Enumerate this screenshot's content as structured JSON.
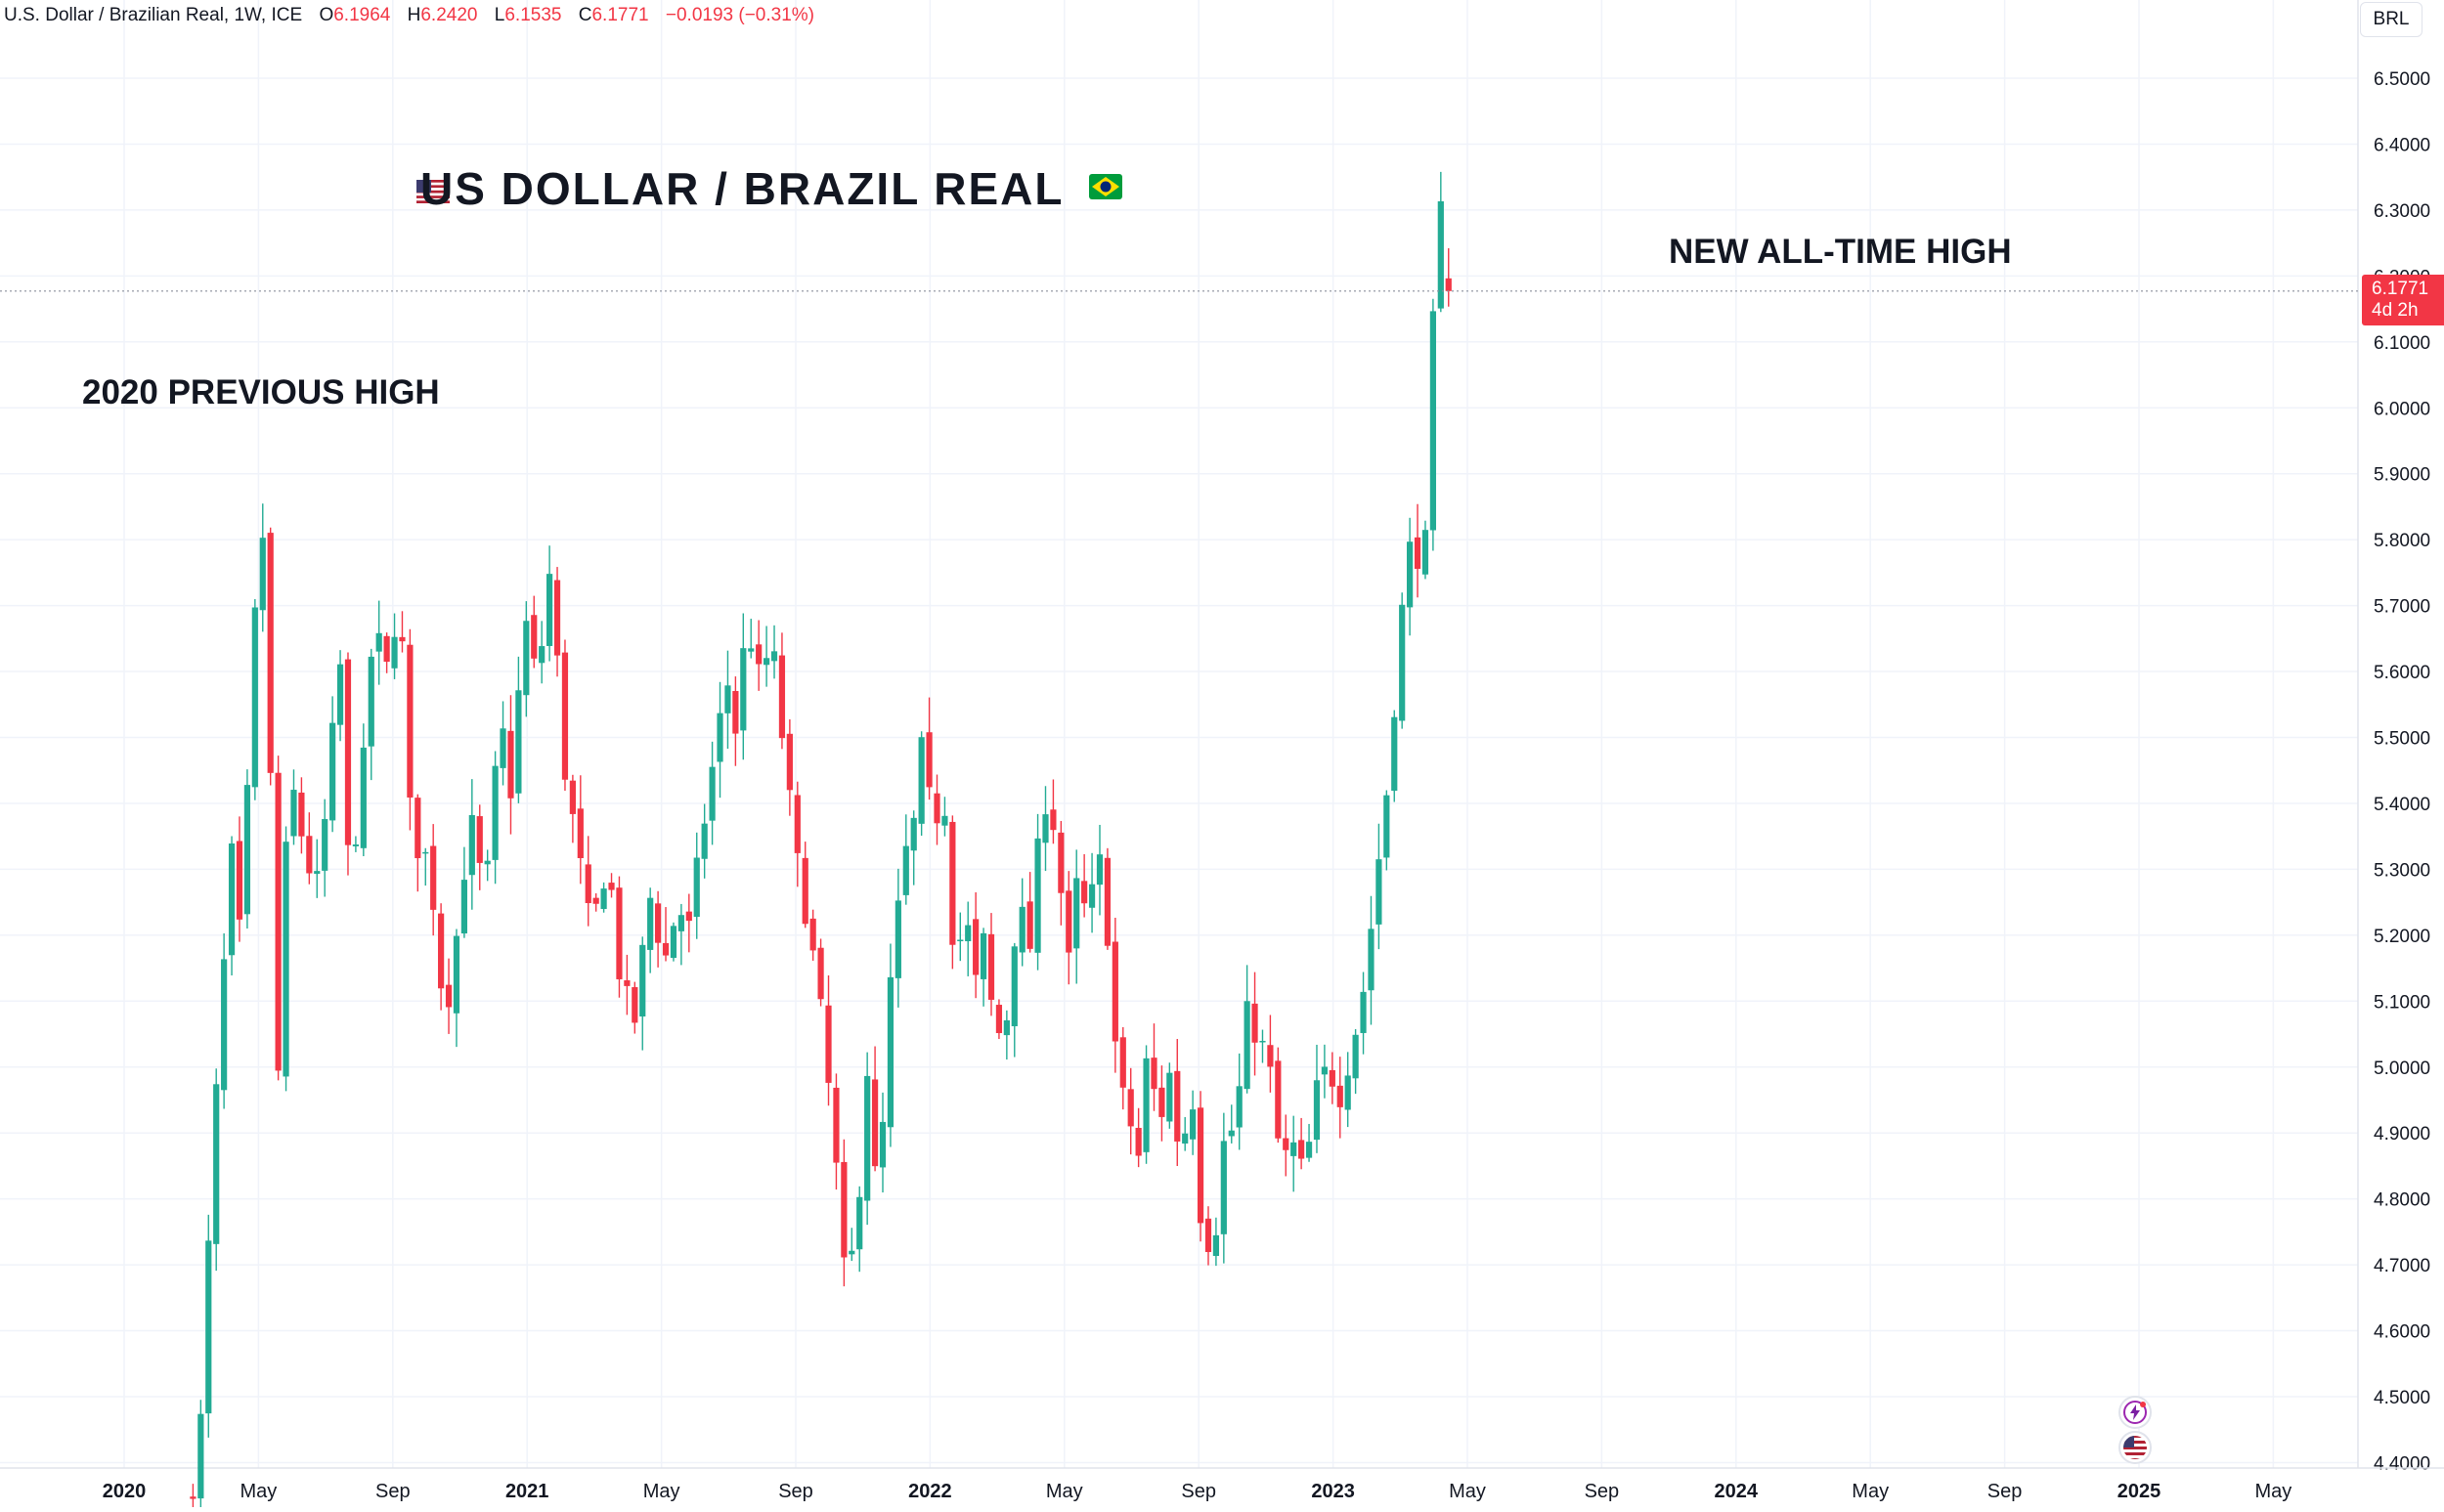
{
  "legend": {
    "symbol": "U.S. Dollar / Brazilian Real, 1W, ICE",
    "open_label": "O",
    "open_value": "6.1964",
    "high_label": "H",
    "high_value": "6.2420",
    "low_label": "L",
    "low_value": "6.1535",
    "close_label": "C",
    "close_value": "6.1771",
    "change": "−0.0193 (−0.31%)"
  },
  "currency_button": "BRL",
  "headline": "US DOLLAR / BRAZIL REAL",
  "annotations": {
    "previous_high": "2020 PREVIOUS HIGH",
    "all_time_high": "NEW ALL-TIME HIGH"
  },
  "price_label": {
    "value": "6.1771",
    "countdown": "4d 2h"
  },
  "colors": {
    "up": "#22ab94",
    "down": "#f23645",
    "grid": "#f0f3fa",
    "text": "#131722"
  },
  "icons": {
    "us_flag": "us-flag-icon",
    "brazil_flag": "brazil-flag-icon",
    "lightning": "lightning-icon",
    "us_event": "us-flag-icon"
  },
  "chart_data": {
    "type": "candlestick",
    "interval": "1W",
    "y_axis_ticks": [
      "6.5000",
      "6.4000",
      "6.3000",
      "6.2000",
      "6.1000",
      "6.0000",
      "5.9000",
      "5.8000",
      "5.7000",
      "5.6000",
      "5.5000",
      "5.4000",
      "5.3000",
      "5.2000",
      "5.1000",
      "5.0000",
      "4.9000",
      "4.8000",
      "4.7000",
      "4.6000",
      "4.5000",
      "4.4000"
    ],
    "ylim": [
      4.39,
      6.6
    ],
    "x_axis_ticks": [
      {
        "label": "2020",
        "year_start": true,
        "t": 0
      },
      {
        "label": "May",
        "year_start": false,
        "t": 4
      },
      {
        "label": "Sep",
        "year_start": false,
        "t": 8
      },
      {
        "label": "2021",
        "year_start": true,
        "t": 12
      },
      {
        "label": "May",
        "year_start": false,
        "t": 16
      },
      {
        "label": "Sep",
        "year_start": false,
        "t": 20
      },
      {
        "label": "2022",
        "year_start": true,
        "t": 24
      },
      {
        "label": "May",
        "year_start": false,
        "t": 28
      },
      {
        "label": "Sep",
        "year_start": false,
        "t": 32
      },
      {
        "label": "2023",
        "year_start": true,
        "t": 36
      },
      {
        "label": "May",
        "year_start": false,
        "t": 40
      },
      {
        "label": "Sep",
        "year_start": false,
        "t": 44
      },
      {
        "label": "2024",
        "year_start": true,
        "t": 48
      },
      {
        "label": "May",
        "year_start": false,
        "t": 52
      },
      {
        "label": "Sep",
        "year_start": false,
        "t": 56
      },
      {
        "label": "2025",
        "year_start": true,
        "t": 60
      },
      {
        "label": "May",
        "year_start": false,
        "t": 64
      }
    ],
    "path": [
      [
        2.05,
        4.37
      ],
      [
        2.3,
        4.47
      ],
      [
        2.6,
        4.83
      ],
      [
        2.9,
        5.1
      ],
      [
        3.2,
        5.32
      ],
      [
        3.5,
        5.17
      ],
      [
        3.8,
        5.6
      ],
      [
        4.1,
        5.85
      ],
      [
        4.35,
        5.45
      ],
      [
        4.6,
        4.97
      ],
      [
        4.9,
        5.45
      ],
      [
        5.3,
        5.35
      ],
      [
        5.7,
        5.26
      ],
      [
        6.1,
        5.42
      ],
      [
        6.4,
        5.65
      ],
      [
        6.7,
        5.28
      ],
      [
        7.1,
        5.44
      ],
      [
        7.45,
        5.69
      ],
      [
        7.75,
        5.58
      ],
      [
        8.2,
        5.72
      ],
      [
        8.55,
        5.35
      ],
      [
        9.1,
        5.31
      ],
      [
        9.55,
        5.07
      ],
      [
        9.9,
        5.2
      ],
      [
        10.3,
        5.38
      ],
      [
        10.75,
        5.25
      ],
      [
        11.2,
        5.53
      ],
      [
        11.55,
        5.41
      ],
      [
        11.9,
        5.69
      ],
      [
        12.3,
        5.58
      ],
      [
        12.7,
        5.76
      ],
      [
        13.1,
        5.46
      ],
      [
        13.5,
        5.33
      ],
      [
        13.9,
        5.2
      ],
      [
        14.4,
        5.32
      ],
      [
        14.8,
        5.12
      ],
      [
        15.2,
        5.07
      ],
      [
        15.65,
        5.26
      ],
      [
        16.1,
        5.16
      ],
      [
        16.5,
        5.25
      ],
      [
        16.8,
        5.2
      ],
      [
        17.2,
        5.35
      ],
      [
        17.6,
        5.48
      ],
      [
        17.95,
        5.59
      ],
      [
        18.2,
        5.51
      ],
      [
        18.55,
        5.68
      ],
      [
        18.9,
        5.59
      ],
      [
        19.3,
        5.64
      ],
      [
        19.6,
        5.5
      ],
      [
        20.0,
        5.32
      ],
      [
        20.4,
        5.21
      ],
      [
        20.8,
        5.06
      ],
      [
        21.15,
        4.88
      ],
      [
        21.45,
        4.68
      ],
      [
        21.8,
        4.73
      ],
      [
        22.1,
        5.02
      ],
      [
        22.45,
        4.77
      ],
      [
        22.8,
        5.11
      ],
      [
        23.2,
        5.31
      ],
      [
        23.5,
        5.36
      ],
      [
        23.75,
        5.48
      ],
      [
        24.1,
        5.36
      ],
      [
        24.4,
        5.43
      ],
      [
        24.75,
        5.14
      ],
      [
        25.05,
        5.25
      ],
      [
        25.3,
        5.11
      ],
      [
        25.6,
        5.19
      ],
      [
        25.95,
        5.04
      ],
      [
        26.3,
        5.08
      ],
      [
        26.6,
        5.25
      ],
      [
        27.0,
        5.18
      ],
      [
        27.35,
        5.42
      ],
      [
        27.75,
        5.36
      ],
      [
        28.1,
        5.14
      ],
      [
        28.4,
        5.29
      ],
      [
        28.7,
        5.21
      ],
      [
        29.0,
        5.33
      ],
      [
        29.3,
        5.2
      ],
      [
        29.6,
        4.97
      ],
      [
        29.9,
        4.93
      ],
      [
        30.2,
        4.86
      ],
      [
        30.5,
        5.04
      ],
      [
        30.8,
        4.9
      ],
      [
        31.1,
        5.0
      ],
      [
        31.45,
        4.86
      ],
      [
        31.8,
        4.97
      ],
      [
        32.1,
        4.75
      ],
      [
        32.45,
        4.73
      ],
      [
        32.8,
        4.91
      ],
      [
        33.1,
        4.9
      ],
      [
        33.4,
        5.08
      ],
      [
        33.75,
        5.05
      ],
      [
        34.1,
        5.0
      ],
      [
        34.45,
        4.85
      ],
      [
        34.8,
        4.88
      ],
      [
        35.15,
        4.83
      ],
      [
        35.5,
        4.96
      ],
      [
        35.85,
        5.0
      ],
      [
        36.2,
        4.96
      ],
      [
        36.6,
        5.04
      ],
      [
        36.95,
        5.13
      ],
      [
        37.3,
        5.29
      ],
      [
        37.6,
        5.42
      ],
      [
        37.9,
        5.6
      ],
      [
        38.15,
        5.75
      ],
      [
        38.35,
        5.8
      ],
      [
        38.6,
        5.77
      ],
      [
        38.8,
        5.8
      ],
      [
        38.95,
        6.1
      ],
      [
        39.2,
        6.3
      ],
      [
        39.5,
        6.18
      ]
    ]
  }
}
